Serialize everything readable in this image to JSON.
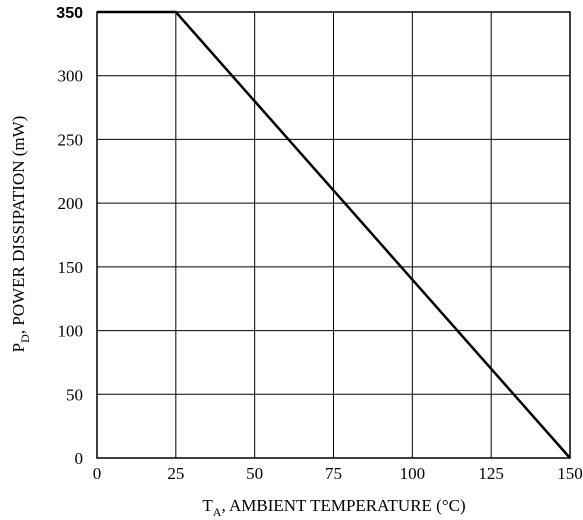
{
  "chart_data": {
    "type": "line",
    "xlabel": {
      "main": "T",
      "sub": "A",
      "rest": ", AMBIENT TEMPERATURE (°C)"
    },
    "ylabel": {
      "main": "P",
      "sub": "D",
      "rest": ", POWER DISSIPATION (mW)"
    },
    "xlim": [
      0,
      150
    ],
    "ylim": [
      0,
      350
    ],
    "x_ticks": [
      0,
      25,
      50,
      75,
      100,
      125,
      150
    ],
    "x_tick_labels": [
      "0",
      "25",
      "50",
      "75",
      "100",
      "125",
      "150"
    ],
    "y_ticks": [
      0,
      50,
      100,
      150,
      200,
      250,
      300,
      350
    ],
    "y_tick_labels": [
      "0",
      "50",
      "100",
      "150",
      "200",
      "250",
      "300",
      "350"
    ],
    "grid": true,
    "series": [
      {
        "x": [
          0,
          25,
          150
        ],
        "y": [
          350,
          350,
          0
        ]
      }
    ]
  }
}
